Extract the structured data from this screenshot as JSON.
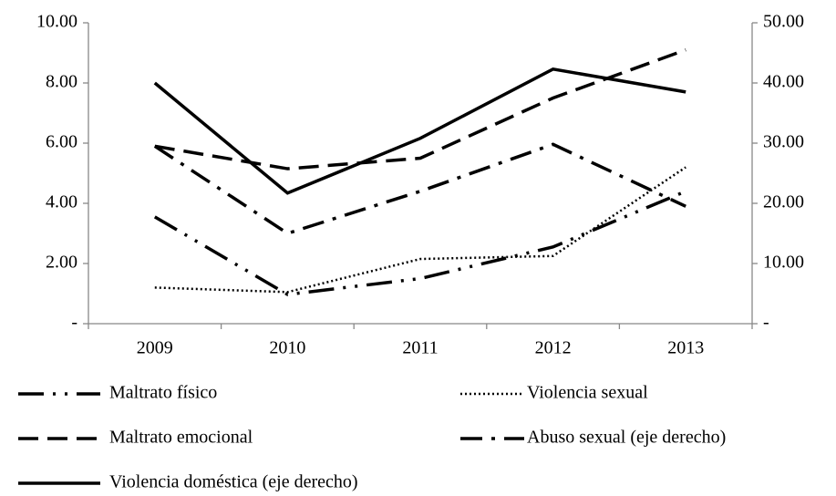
{
  "chart_data": {
    "type": "line",
    "categories": [
      "2009",
      "2010",
      "2011",
      "2012",
      "2013"
    ],
    "series": [
      {
        "name": "Maltrato físico",
        "color": "#000000",
        "dash": "28 10 3 10 3 10",
        "values": [
          3.55,
          0.97,
          1.5,
          2.55,
          4.4
        ]
      },
      {
        "name": "Violencia sexual",
        "color": "#000000",
        "dash": "2 3",
        "values": [
          1.2,
          1.05,
          2.15,
          2.25,
          5.2
        ]
      },
      {
        "name": "Maltrato emocional",
        "color": "#000000",
        "dash": "22 10",
        "values": [
          5.9,
          5.15,
          5.5,
          7.5,
          9.1
        ]
      },
      {
        "name": "Abuso sexual (eje derecho)",
        "color": "#000000",
        "dash": "24 10 4 10",
        "axis": "y2",
        "values": [
          29.5,
          15,
          22,
          29.8,
          19.5
        ]
      },
      {
        "name": "Violencia doméstica (eje derecho)",
        "color": "#000000",
        "dash": "none",
        "axis": "y2",
        "values": [
          40,
          21.7,
          30.8,
          42.3,
          38.5
        ]
      }
    ],
    "ylim": [
      0,
      10
    ],
    "yticks": [
      {
        "value": 0,
        "label": "-"
      },
      {
        "value": 2,
        "label": "2.00"
      },
      {
        "value": 4,
        "label": "4.00"
      },
      {
        "value": 6,
        "label": "6.00"
      },
      {
        "value": 8,
        "label": "8.00"
      },
      {
        "value": 10,
        "label": "10.00"
      }
    ],
    "y2lim": [
      0,
      50
    ],
    "y2ticks": [
      {
        "value": 0,
        "label": "-"
      },
      {
        "value": 10,
        "label": "10.00"
      },
      {
        "value": 20,
        "label": "20.00"
      },
      {
        "value": 30,
        "label": "30.00"
      },
      {
        "value": 40,
        "label": "40.00"
      },
      {
        "value": 50,
        "label": "50.00"
      }
    ],
    "grid": false
  }
}
